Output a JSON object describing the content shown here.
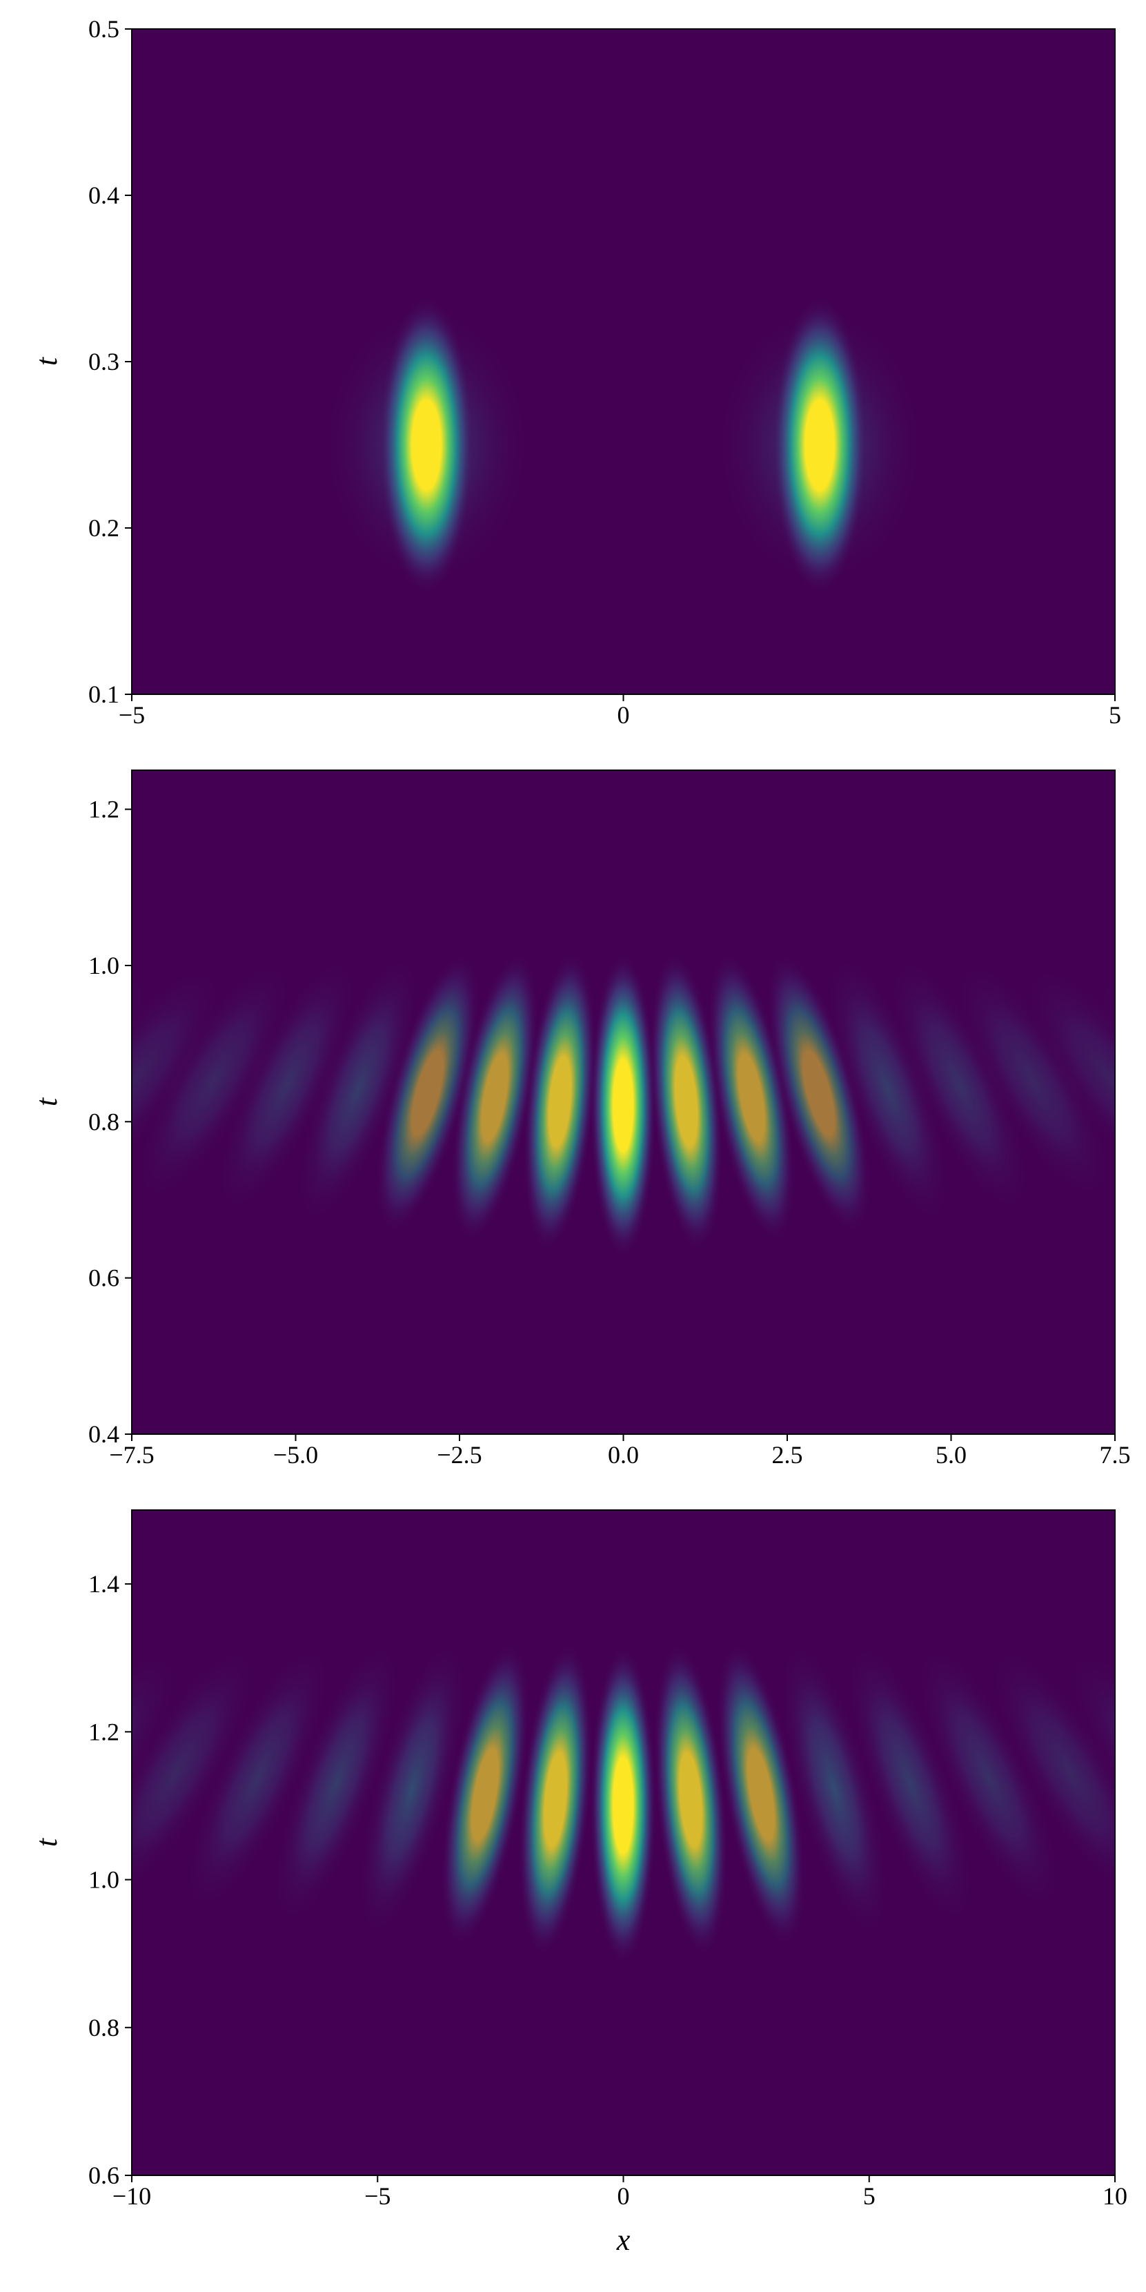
{
  "chart_data": [
    {
      "type": "heatmap",
      "y_label": "t",
      "xlim": [
        -5,
        5
      ],
      "ylim": [
        0.1,
        0.5
      ],
      "xticks": [
        {
          "value": -5,
          "label": "−5"
        },
        0,
        5
      ],
      "yticks": [
        0.1,
        0.2,
        0.3,
        0.4,
        0.5
      ]
    },
    {
      "type": "heatmap",
      "y_label": "t",
      "xlim": [
        -7.5,
        7.5
      ],
      "ylim": [
        0.4,
        1.25
      ],
      "xticks": [
        {
          "value": -7.5,
          "label": "−7.5"
        },
        {
          "value": -5,
          "label": "−5.0"
        },
        {
          "value": -2.5,
          "label": "−2.5"
        },
        {
          "value": 0,
          "label": "0.0"
        },
        2.5,
        {
          "value": 5,
          "label": "5.0"
        },
        7.5
      ],
      "yticks": [
        0.4,
        0.6,
        0.8,
        {
          "value": 1,
          "label": "1.0"
        },
        1.2
      ]
    },
    {
      "type": "heatmap",
      "y_label": "t",
      "x_label": "x",
      "xlim": [
        -10,
        10
      ],
      "ylim": [
        0.6,
        1.5
      ],
      "xticks": [
        {
          "value": -10,
          "label": "−10"
        },
        {
          "value": -5,
          "label": "−5"
        },
        0,
        5,
        10
      ],
      "yticks": [
        0.6,
        0.8,
        {
          "value": 1,
          "label": "1.0"
        },
        1.2,
        1.4
      ]
    }
  ]
}
